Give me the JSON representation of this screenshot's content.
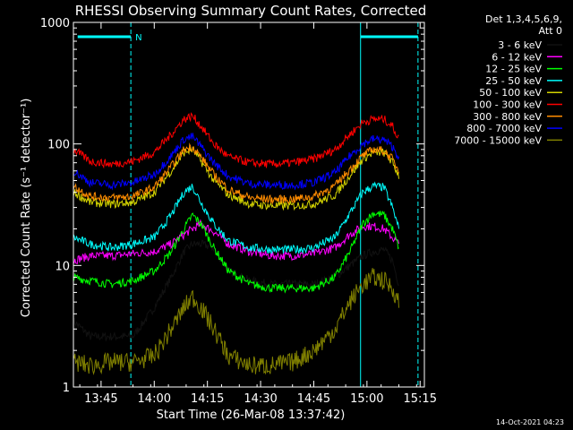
{
  "chart_data": {
    "type": "line",
    "title": "RHESSI Observing Summary Count Rates, Corrected",
    "xlabel": "Start Time (26-Mar-08 13:37:42)",
    "ylabel": "Corrected Count Rate (s⁻¹ detector⁻¹)",
    "y_scale": "log",
    "xlim": [
      13.62,
      15.27
    ],
    "ylim": [
      1,
      1000
    ],
    "x_ticks": [
      "13:45",
      "14:00",
      "14:15",
      "14:30",
      "14:45",
      "15:00",
      "15:15"
    ],
    "x_tick_hours": [
      13.75,
      14.0,
      14.25,
      14.5,
      14.75,
      15.0,
      15.25
    ],
    "y_ticks": [
      "1",
      "10",
      "100",
      "1000"
    ],
    "y_tick_values": [
      1,
      10,
      100,
      1000
    ],
    "legend": {
      "placement": "right",
      "header": [
        "Det 1,3,4,5,6,9,",
        "Att 0"
      ]
    },
    "annotations": {
      "night_bars": [
        {
          "start_hour": 13.64,
          "end_hour": 13.89,
          "label": "N"
        },
        {
          "start_hour": 14.97,
          "end_hour": 15.24,
          "label": ""
        }
      ],
      "saa_markers_hour": [
        13.89,
        14.97,
        15.24
      ]
    },
    "timestamp": "14-Oct-2021 04:23",
    "x": [
      13.62,
      13.7,
      13.8,
      13.9,
      14.0,
      14.08,
      14.14,
      14.18,
      14.22,
      14.28,
      14.35,
      14.45,
      14.55,
      14.65,
      14.75,
      14.85,
      14.92,
      14.98,
      15.03,
      15.08,
      15.12,
      15.15
    ],
    "series": [
      {
        "name": "3 - 6 keV",
        "color": "#000000",
        "values": [
          3.5,
          2.6,
          2.6,
          2.6,
          4.5,
          8.0,
          13.0,
          15.0,
          15.0,
          14.0,
          9.0,
          7.5,
          7.0,
          7.0,
          7.0,
          8.0,
          10.0,
          12.0,
          13.0,
          13.5,
          11.0,
          7.0
        ]
      },
      {
        "name": "6 - 12 keV",
        "color": "#ff00ff",
        "values": [
          11.0,
          12.0,
          12.0,
          12.5,
          13.0,
          15.0,
          18.0,
          20.0,
          22.0,
          19.0,
          15.0,
          13.0,
          12.0,
          12.0,
          12.5,
          14.0,
          18.0,
          21.0,
          21.0,
          20.0,
          17.0,
          15.0
        ]
      },
      {
        "name": "12 - 25 keV",
        "color": "#00ff00",
        "values": [
          8.0,
          7.5,
          7.0,
          7.5,
          9.0,
          13.0,
          20.0,
          26.0,
          22.0,
          14.0,
          9.0,
          7.0,
          6.5,
          6.5,
          6.5,
          8.0,
          13.0,
          22.0,
          27.0,
          26.0,
          20.0,
          14.0
        ]
      },
      {
        "name": "25 - 50 keV",
        "color": "#00ffff",
        "values": [
          17.0,
          15.0,
          14.0,
          15.0,
          17.0,
          26.0,
          40.0,
          45.0,
          33.0,
          22.0,
          16.0,
          14.0,
          13.5,
          13.5,
          14.0,
          17.0,
          27.0,
          40.0,
          45.0,
          44.0,
          30.0,
          20.0
        ]
      },
      {
        "name": "50 - 100 keV",
        "color": "#d4d400",
        "values": [
          40.0,
          33.0,
          32.0,
          33.0,
          40.0,
          60.0,
          85.0,
          90.0,
          72.0,
          50.0,
          38.0,
          32.0,
          31.0,
          31.0,
          32.0,
          38.0,
          55.0,
          75.0,
          85.0,
          85.0,
          70.0,
          55.0
        ]
      },
      {
        "name": "100 - 300 keV",
        "color": "#ff0000",
        "values": [
          90.0,
          72.0,
          68.0,
          72.0,
          85.0,
          120.0,
          160.0,
          170.0,
          140.0,
          100.0,
          78.0,
          70.0,
          68.0,
          70.0,
          75.0,
          90.0,
          120.0,
          150.0,
          160.0,
          160.0,
          140.0,
          110.0
        ]
      },
      {
        "name": "300 - 800 keV",
        "color": "#ff8c00",
        "values": [
          45.0,
          37.0,
          36.0,
          37.0,
          44.0,
          65.0,
          90.0,
          95.0,
          78.0,
          56.0,
          42.0,
          36.0,
          35.0,
          35.0,
          37.0,
          45.0,
          62.0,
          80.0,
          90.0,
          88.0,
          75.0,
          60.0
        ]
      },
      {
        "name": "800 - 7000 keV",
        "color": "#0000ff",
        "values": [
          60.0,
          48.0,
          46.0,
          48.0,
          56.0,
          80.0,
          110.0,
          115.0,
          95.0,
          70.0,
          54.0,
          47.0,
          46.0,
          46.0,
          48.0,
          58.0,
          80.0,
          100.0,
          110.0,
          108.0,
          95.0,
          78.0
        ]
      },
      {
        "name": "7000 - 15000 keV",
        "color": "#808000",
        "values": [
          1.6,
          1.5,
          1.6,
          1.6,
          1.8,
          3.0,
          4.5,
          5.5,
          4.5,
          3.0,
          1.8,
          1.5,
          1.5,
          1.6,
          2.0,
          3.0,
          5.0,
          7.0,
          8.0,
          7.5,
          6.5,
          5.0
        ]
      }
    ]
  }
}
